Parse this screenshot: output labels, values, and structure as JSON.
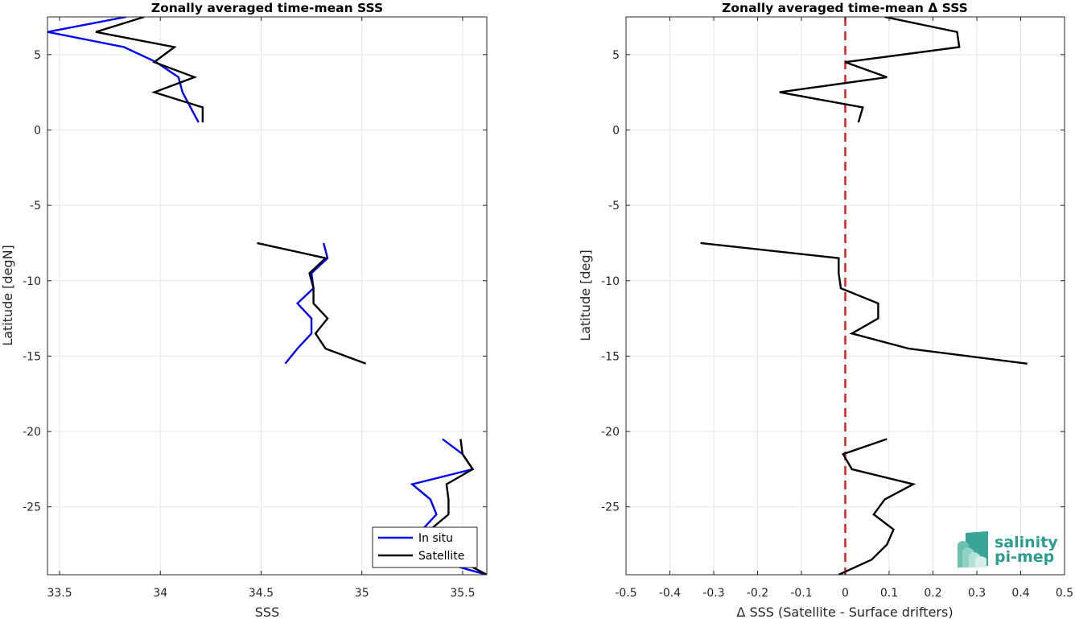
{
  "chart_data": [
    {
      "type": "line",
      "title": "Zonally averaged time-mean SSS",
      "xlabel": "SSS",
      "ylabel": "Latitude [degN]",
      "xlim": [
        33.44,
        35.62
      ],
      "ylim": [
        -29.5,
        7.5
      ],
      "xticks": [
        "33.5",
        "34",
        "34.5",
        "35",
        "35.5"
      ],
      "xtick_values": [
        33.5,
        34,
        34.5,
        35,
        35.5
      ],
      "yticks": [
        "5",
        "0",
        "-5",
        "-10",
        "-15",
        "-20",
        "-25"
      ],
      "ytick_values": [
        5,
        0,
        -5,
        -10,
        -15,
        -20,
        -25
      ],
      "grid": true,
      "legend_position": "bottom-right",
      "series": [
        {
          "name": "In situ",
          "color": "#0000ff",
          "segments": [
            [
              [
                33.83,
                7.5
              ],
              [
                33.44,
                6.5
              ],
              [
                33.82,
                5.5
              ],
              [
                33.98,
                4.5
              ],
              [
                34.09,
                3.5
              ],
              [
                34.11,
                2.5
              ],
              [
                34.15,
                1.5
              ],
              [
                34.19,
                0.5
              ]
            ],
            [
              [
                34.81,
                -7.5
              ],
              [
                34.83,
                -8.5
              ],
              [
                34.75,
                -9.5
              ],
              [
                34.76,
                -10.5
              ],
              [
                34.68,
                -11.5
              ],
              [
                34.75,
                -12.5
              ],
              [
                34.75,
                -13.5
              ],
              [
                34.68,
                -14.5
              ],
              [
                34.62,
                -15.5
              ]
            ],
            [
              [
                35.4,
                -20.5
              ],
              [
                35.5,
                -21.5
              ],
              [
                35.55,
                -22.5
              ],
              [
                35.25,
                -23.5
              ],
              [
                35.34,
                -24.5
              ],
              [
                35.37,
                -25.5
              ],
              [
                35.3,
                -26.5
              ],
              [
                35.28,
                -27.5
              ],
              [
                35.35,
                -28.5
              ],
              [
                35.62,
                -29.5
              ]
            ]
          ]
        },
        {
          "name": "Satellite",
          "color": "#000000",
          "segments": [
            [
              [
                33.92,
                7.5
              ],
              [
                33.68,
                6.5
              ],
              [
                34.07,
                5.5
              ],
              [
                33.97,
                4.5
              ],
              [
                34.17,
                3.5
              ],
              [
                33.97,
                2.5
              ],
              [
                34.21,
                1.5
              ],
              [
                34.21,
                0.5
              ]
            ],
            [
              [
                34.48,
                -7.5
              ],
              [
                34.82,
                -8.5
              ],
              [
                34.74,
                -9.5
              ],
              [
                34.76,
                -10.5
              ],
              [
                34.76,
                -11.5
              ],
              [
                34.83,
                -12.5
              ],
              [
                34.77,
                -13.5
              ],
              [
                34.82,
                -14.5
              ],
              [
                35.02,
                -15.5
              ]
            ],
            [
              [
                35.49,
                -20.5
              ],
              [
                35.5,
                -21.5
              ],
              [
                35.55,
                -22.5
              ],
              [
                35.42,
                -23.5
              ],
              [
                35.43,
                -24.5
              ],
              [
                35.43,
                -25.5
              ],
              [
                35.34,
                -26.5
              ],
              [
                35.36,
                -27.5
              ],
              [
                35.48,
                -28.5
              ],
              [
                35.62,
                -29.5
              ]
            ]
          ]
        }
      ]
    },
    {
      "type": "line",
      "title": "Zonally averaged time-mean Δ SSS",
      "xlabel": "Δ SSS (Satellite - Surface drifters)",
      "ylabel": "Latitude [deg]",
      "xlim": [
        -0.5,
        0.5
      ],
      "ylim": [
        -29.5,
        7.5
      ],
      "xticks": [
        "-0.5",
        "-0.4",
        "-0.3",
        "-0.2",
        "-0.1",
        "0",
        "0.1",
        "0.2",
        "0.3",
        "0.4",
        "0.5"
      ],
      "xtick_values": [
        -0.5,
        -0.4,
        -0.3,
        -0.2,
        -0.1,
        0,
        0.1,
        0.2,
        0.3,
        0.4,
        0.5
      ],
      "yticks": [
        "5",
        "0",
        "-5",
        "-10",
        "-15",
        "-20",
        "-25"
      ],
      "ytick_values": [
        5,
        0,
        -5,
        -10,
        -15,
        -20,
        -25
      ],
      "grid": true,
      "reference_line": {
        "x": 0,
        "color": "#e02020",
        "style": "dashed"
      },
      "series": [
        {
          "color": "#000000",
          "segments": [
            [
              [
                0.09,
                7.5
              ],
              [
                0.255,
                6.5
              ],
              [
                0.26,
                5.5
              ],
              [
                0.0,
                4.5
              ],
              [
                0.095,
                3.5
              ],
              [
                -0.15,
                2.5
              ],
              [
                0.04,
                1.5
              ],
              [
                0.03,
                0.5
              ]
            ],
            [
              [
                -0.33,
                -7.5
              ],
              [
                -0.015,
                -8.5
              ],
              [
                -0.015,
                -9.5
              ],
              [
                -0.01,
                -10.5
              ],
              [
                0.075,
                -11.5
              ],
              [
                0.075,
                -12.5
              ],
              [
                0.015,
                -13.5
              ],
              [
                0.145,
                -14.5
              ],
              [
                0.415,
                -15.5
              ]
            ],
            [
              [
                0.095,
                -20.5
              ],
              [
                -0.005,
                -21.5
              ],
              [
                0.015,
                -22.5
              ],
              [
                0.155,
                -23.5
              ],
              [
                0.09,
                -24.5
              ],
              [
                0.065,
                -25.5
              ],
              [
                0.11,
                -26.5
              ],
              [
                0.095,
                -27.5
              ],
              [
                0.06,
                -28.5
              ],
              [
                -0.015,
                -29.5
              ]
            ]
          ]
        }
      ]
    }
  ],
  "logo": {
    "line1": "salinity",
    "line2": "pi-mep",
    "name": "salinity-pi-mep-logo",
    "color": "#2a9d8f"
  }
}
